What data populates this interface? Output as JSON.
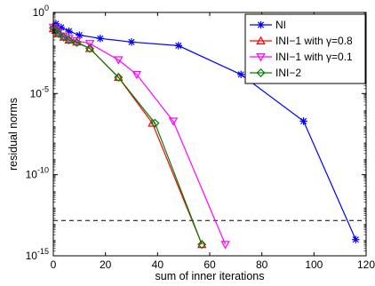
{
  "chart_data": {
    "type": "line",
    "title": "",
    "xlabel": "sum of inner iterations",
    "ylabel": "residual norms",
    "xlim": [
      0,
      120
    ],
    "ylim_exponent": [
      -15,
      0
    ],
    "yscale": "log",
    "x_ticks": [
      0,
      20,
      40,
      60,
      80,
      100,
      120
    ],
    "y_ticks": [
      {
        "exp": 0,
        "base": "10",
        "sup": "0"
      },
      {
        "exp": -5,
        "base": "10",
        "sup": "-5"
      },
      {
        "exp": -10,
        "base": "10",
        "sup": "-10"
      },
      {
        "exp": -15,
        "base": "10",
        "sup": "-15"
      }
    ],
    "grid": false,
    "legend_position": "top-right",
    "reference_line": {
      "style": "dashed",
      "color": "#000000",
      "y": 1.5e-13
    },
    "series": [
      {
        "name": "NI",
        "color": "#0000ff",
        "marker": "star",
        "x": [
          1,
          3,
          6,
          10,
          18,
          30,
          48,
          72,
          96,
          116
        ],
        "y": [
          0.2,
          0.12,
          0.07,
          0.04,
          0.025,
          0.015,
          0.009,
          0.00015,
          2e-07,
          1e-14
        ]
      },
      {
        "name": "INI−1 with γ=0.8",
        "color": "#ff0000",
        "marker": "triangle-up",
        "x": [
          0,
          1,
          2,
          4,
          6,
          9,
          14,
          25,
          38,
          57
        ],
        "y": [
          0.1,
          0.08,
          0.05,
          0.03,
          0.02,
          0.015,
          0.006,
          0.0001,
          1.5e-07,
          5e-15
        ]
      },
      {
        "name": "INI−1 with γ=0.1",
        "color": "#ff00ff",
        "marker": "triangle-down",
        "x": [
          0,
          1,
          2,
          4,
          6,
          9,
          14,
          25,
          32,
          46,
          66
        ],
        "y": [
          0.12,
          0.09,
          0.06,
          0.035,
          0.025,
          0.018,
          0.012,
          0.0012,
          0.00015,
          2e-07,
          5e-15
        ]
      },
      {
        "name": "INI−2",
        "color": "#008000",
        "marker": "diamond",
        "x": [
          0,
          1,
          2,
          4,
          6,
          9,
          14,
          25,
          39,
          57
        ],
        "y": [
          0.11,
          0.08,
          0.05,
          0.03,
          0.02,
          0.014,
          0.006,
          0.0001,
          1.5e-07,
          5e-15
        ]
      }
    ]
  }
}
